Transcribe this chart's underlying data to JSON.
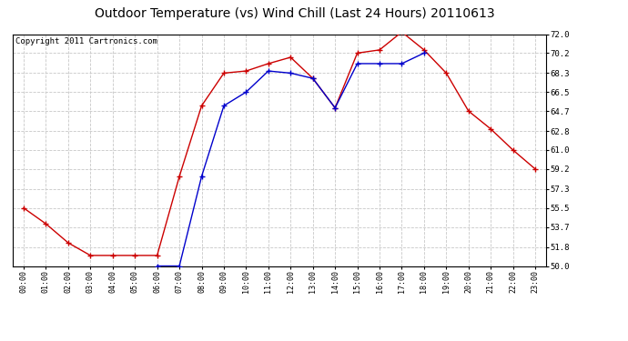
{
  "title": "Outdoor Temperature (vs) Wind Chill (Last 24 Hours) 20110613",
  "copyright": "Copyright 2011 Cartronics.com",
  "x_labels": [
    "00:00",
    "01:00",
    "02:00",
    "03:00",
    "04:00",
    "05:00",
    "06:00",
    "07:00",
    "08:00",
    "09:00",
    "10:00",
    "11:00",
    "12:00",
    "13:00",
    "14:00",
    "15:00",
    "16:00",
    "17:00",
    "18:00",
    "19:00",
    "20:00",
    "21:00",
    "22:00",
    "23:00"
  ],
  "temp_red": [
    55.5,
    54.0,
    52.2,
    51.0,
    51.0,
    51.0,
    51.0,
    58.5,
    65.2,
    68.3,
    68.5,
    69.2,
    69.8,
    67.8,
    65.0,
    70.2,
    70.5,
    72.2,
    70.5,
    68.3,
    64.7,
    63.0,
    61.0,
    59.2
  ],
  "temp_blue": [
    null,
    null,
    null,
    null,
    null,
    null,
    50.0,
    50.0,
    58.5,
    65.2,
    66.5,
    68.5,
    68.3,
    67.8,
    65.0,
    69.2,
    69.2,
    69.2,
    70.2,
    null,
    null,
    null,
    null,
    null
  ],
  "ylim": [
    50.0,
    72.0
  ],
  "yticks": [
    50.0,
    51.8,
    53.7,
    55.5,
    57.3,
    59.2,
    61.0,
    62.8,
    64.7,
    66.5,
    68.3,
    70.2,
    72.0
  ],
  "red_color": "#cc0000",
  "blue_color": "#0000cc",
  "bg_color": "#ffffff",
  "grid_color": "#c8c8c8",
  "title_fontsize": 10,
  "copyright_fontsize": 6.5
}
